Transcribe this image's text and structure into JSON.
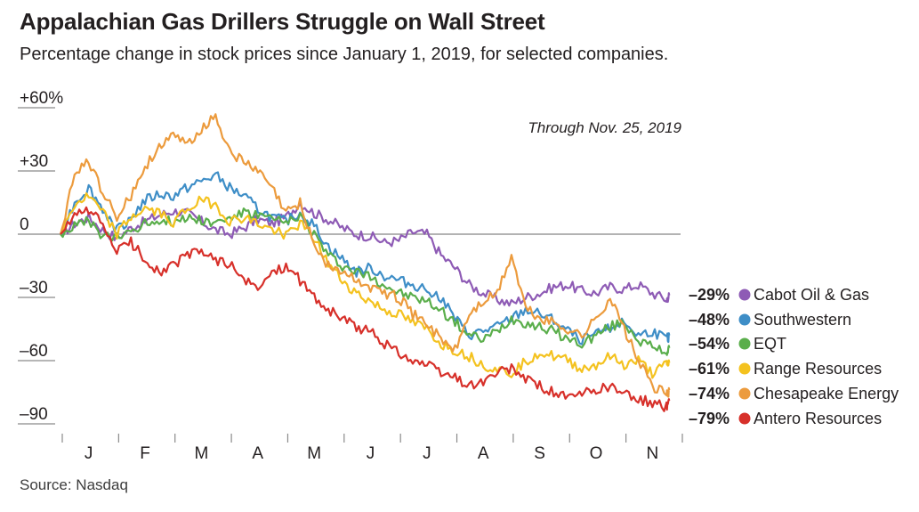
{
  "header": {
    "title": "Appalachian Gas Drillers Struggle on Wall Street",
    "subtitle": "Percentage change in stock prices since January 1, 2019, for selected companies."
  },
  "footer": {
    "source": "Source: Nasdaq"
  },
  "chart_data": {
    "type": "line",
    "title": "Appalachian Gas Drillers Struggle on Wall Street",
    "subtitle": "Percentage change in stock prices since January 1, 2019, for selected companies.",
    "annotation": "Through Nov. 25, 2019",
    "xlabel": "",
    "ylabel": "",
    "ylim": [
      -95,
      60
    ],
    "yticks": [
      {
        "value": 60,
        "label": "+60%"
      },
      {
        "value": 30,
        "label": "+30"
      },
      {
        "value": 0,
        "label": "0"
      },
      {
        "value": -30,
        "label": "-30"
      },
      {
        "value": -60,
        "label": "-60"
      },
      {
        "value": -90,
        "label": "-90"
      }
    ],
    "xlim": [
      0,
      11
    ],
    "month_labels": [
      "J",
      "F",
      "M",
      "A",
      "M",
      "J",
      "J",
      "A",
      "S",
      "O",
      "N"
    ],
    "x_units": "months since Jan 1, 2019",
    "series": [
      {
        "name": "Cabot Oil & Gas",
        "end_label": "-29%",
        "color": "#8e5bb5",
        "x": [
          0,
          0.25,
          0.5,
          0.75,
          1.0,
          1.25,
          1.5,
          1.75,
          2.0,
          2.25,
          2.5,
          2.75,
          3.0,
          3.25,
          3.5,
          3.75,
          4.0,
          4.25,
          4.5,
          4.75,
          5.0,
          5.25,
          5.5,
          5.75,
          6.0,
          6.25,
          6.5,
          6.75,
          7.0,
          7.25,
          7.5,
          7.75,
          8.0,
          8.25,
          8.5,
          8.75,
          9.0,
          9.25,
          9.5,
          9.75,
          10.0,
          10.25,
          10.5,
          10.75,
          10.8
        ],
        "y": [
          0,
          5,
          8,
          2,
          -2,
          3,
          6,
          9,
          11,
          10,
          6,
          2,
          0,
          3,
          7,
          5,
          8,
          15,
          10,
          7,
          3,
          0,
          -1,
          -4,
          -3,
          1,
          0,
          -10,
          -16,
          -24,
          -28,
          -31,
          -33,
          -30,
          -28,
          -25,
          -24,
          -27,
          -28,
          -25,
          -26,
          -24,
          -28,
          -31,
          -29
        ]
      },
      {
        "name": "Southwestern",
        "end_label": "-48%",
        "color": "#3e8ec7",
        "x": [
          0,
          0.25,
          0.5,
          0.75,
          1.0,
          1.25,
          1.5,
          1.75,
          2.0,
          2.25,
          2.5,
          2.75,
          3.0,
          3.25,
          3.5,
          3.75,
          4.0,
          4.25,
          4.5,
          4.75,
          5.0,
          5.25,
          5.5,
          5.75,
          6.0,
          6.25,
          6.5,
          6.75,
          7.0,
          7.25,
          7.5,
          7.75,
          8.0,
          8.25,
          8.5,
          8.75,
          9.0,
          9.25,
          9.5,
          9.75,
          10.0,
          10.25,
          10.5,
          10.75,
          10.8
        ],
        "y": [
          0,
          15,
          22,
          12,
          2,
          8,
          16,
          19,
          18,
          22,
          25,
          28,
          22,
          18,
          12,
          8,
          6,
          10,
          4,
          -6,
          -12,
          -18,
          -16,
          -20,
          -22,
          -24,
          -26,
          -30,
          -40,
          -48,
          -46,
          -44,
          -40,
          -36,
          -38,
          -41,
          -46,
          -50,
          -48,
          -44,
          -42,
          -48,
          -46,
          -50,
          -48
        ]
      },
      {
        "name": "EQT",
        "end_label": "-54%",
        "color": "#5aae4b",
        "x": [
          0,
          0.25,
          0.5,
          0.75,
          1.0,
          1.25,
          1.5,
          1.75,
          2.0,
          2.25,
          2.5,
          2.75,
          3.0,
          3.25,
          3.5,
          3.75,
          4.0,
          4.25,
          4.5,
          4.75,
          5.0,
          5.25,
          5.5,
          5.75,
          6.0,
          6.25,
          6.5,
          6.75,
          7.0,
          7.25,
          7.5,
          7.75,
          8.0,
          8.25,
          8.5,
          8.75,
          9.0,
          9.25,
          9.5,
          9.75,
          10.0,
          10.25,
          10.5,
          10.75,
          10.8
        ],
        "y": [
          0,
          4,
          6,
          -1,
          -2,
          2,
          5,
          7,
          6,
          8,
          7,
          5,
          8,
          10,
          9,
          7,
          5,
          9,
          0,
          -10,
          -15,
          -18,
          -20,
          -24,
          -28,
          -30,
          -32,
          -36,
          -42,
          -48,
          -50,
          -46,
          -40,
          -42,
          -44,
          -46,
          -50,
          -52,
          -48,
          -44,
          -42,
          -50,
          -54,
          -56,
          -54
        ]
      },
      {
        "name": "Range Resources",
        "end_label": "-61%",
        "color": "#f4c21f",
        "x": [
          0,
          0.25,
          0.5,
          0.75,
          1.0,
          1.25,
          1.5,
          1.75,
          2.0,
          2.25,
          2.5,
          2.75,
          3.0,
          3.25,
          3.5,
          3.75,
          4.0,
          4.25,
          4.5,
          4.75,
          5.0,
          5.25,
          5.5,
          5.75,
          6.0,
          6.25,
          6.5,
          6.75,
          7.0,
          7.25,
          7.5,
          7.75,
          8.0,
          8.25,
          8.5,
          8.75,
          9.0,
          9.25,
          9.5,
          9.75,
          10.0,
          10.25,
          10.5,
          10.75,
          10.8
        ],
        "y": [
          0,
          14,
          18,
          10,
          0,
          8,
          12,
          10,
          6,
          12,
          16,
          14,
          6,
          8,
          5,
          2,
          0,
          5,
          -2,
          -14,
          -22,
          -28,
          -32,
          -36,
          -38,
          -42,
          -45,
          -52,
          -55,
          -58,
          -62,
          -64,
          -66,
          -60,
          -56,
          -58,
          -60,
          -64,
          -62,
          -58,
          -62,
          -60,
          -66,
          -62,
          -61
        ]
      },
      {
        "name": "Chesapeake Energy",
        "end_label": "-74%",
        "color": "#ec9b3d",
        "x": [
          0,
          0.25,
          0.5,
          0.75,
          1.0,
          1.25,
          1.5,
          1.75,
          2.0,
          2.25,
          2.5,
          2.75,
          3.0,
          3.25,
          3.5,
          3.75,
          4.0,
          4.25,
          4.5,
          4.75,
          5.0,
          5.25,
          5.5,
          5.75,
          6.0,
          6.25,
          6.5,
          6.75,
          7.0,
          7.25,
          7.5,
          7.75,
          8.0,
          8.25,
          8.5,
          8.75,
          9.0,
          9.25,
          9.5,
          9.75,
          10.0,
          10.25,
          10.5,
          10.75,
          10.8
        ],
        "y": [
          0,
          28,
          35,
          20,
          8,
          18,
          32,
          42,
          46,
          43,
          50,
          56,
          40,
          34,
          30,
          22,
          10,
          15,
          -5,
          -15,
          -18,
          -22,
          -25,
          -28,
          -30,
          -38,
          -42,
          -50,
          -55,
          -38,
          -32,
          -28,
          -10,
          -35,
          -40,
          -42,
          -45,
          -48,
          -40,
          -30,
          -45,
          -60,
          -72,
          -76,
          -74
        ]
      },
      {
        "name": "Antero Resources",
        "end_label": "-79%",
        "color": "#d7302a",
        "x": [
          0,
          0.25,
          0.5,
          0.75,
          1.0,
          1.25,
          1.5,
          1.75,
          2.0,
          2.25,
          2.5,
          2.75,
          3.0,
          3.25,
          3.5,
          3.75,
          4.0,
          4.25,
          4.5,
          4.75,
          5.0,
          5.25,
          5.5,
          5.75,
          6.0,
          6.25,
          6.5,
          6.75,
          7.0,
          7.25,
          7.5,
          7.75,
          8.0,
          8.25,
          8.5,
          8.75,
          9.0,
          9.25,
          9.5,
          9.75,
          10.0,
          10.25,
          10.5,
          10.75,
          10.8
        ],
        "y": [
          0,
          8,
          12,
          4,
          -8,
          -4,
          -12,
          -18,
          -15,
          -10,
          -8,
          -12,
          -14,
          -22,
          -26,
          -18,
          -15,
          -22,
          -30,
          -36,
          -40,
          -44,
          -46,
          -52,
          -56,
          -60,
          -62,
          -66,
          -68,
          -72,
          -70,
          -66,
          -64,
          -68,
          -72,
          -75,
          -78,
          -76,
          -74,
          -72,
          -76,
          -78,
          -80,
          -82,
          -79
        ]
      }
    ]
  }
}
